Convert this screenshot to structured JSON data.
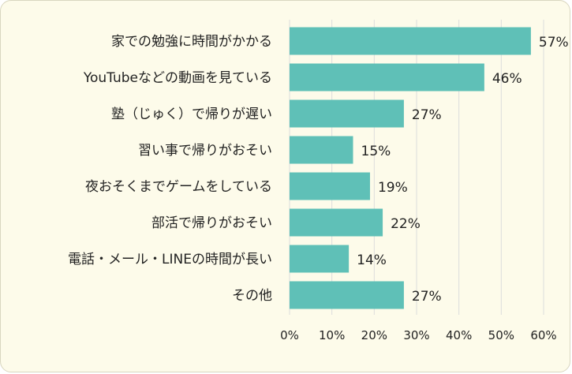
{
  "chart_data": {
    "type": "bar",
    "orientation": "horizontal",
    "title": "",
    "xlabel": "",
    "ylabel": "",
    "categories": [
      "家での勉強に時間がかかる",
      "YouTubeなどの動画を見ている",
      "塾（じゅく）で帰りが遅い",
      "習い事で帰りがおそい",
      "夜おそくまでゲームをしている",
      "部活で帰りがおそい",
      "電話・メール・LINEの時間が長い",
      "その他"
    ],
    "values": [
      57,
      46,
      27,
      15,
      19,
      22,
      14,
      27
    ],
    "value_labels": [
      "57%",
      "46%",
      "27%",
      "15%",
      "19%",
      "22%",
      "14%",
      "27%"
    ],
    "xlim": [
      0,
      60
    ],
    "xticks": [
      0,
      10,
      20,
      30,
      40,
      50,
      60
    ],
    "xtick_labels": [
      "0%",
      "10%",
      "20%",
      "30%",
      "40%",
      "50%",
      "60%"
    ],
    "grid": "vertical",
    "bar_color": "#5fc0b7",
    "grid_color": "#dcdcdc",
    "background_color": "#fdfbea"
  }
}
